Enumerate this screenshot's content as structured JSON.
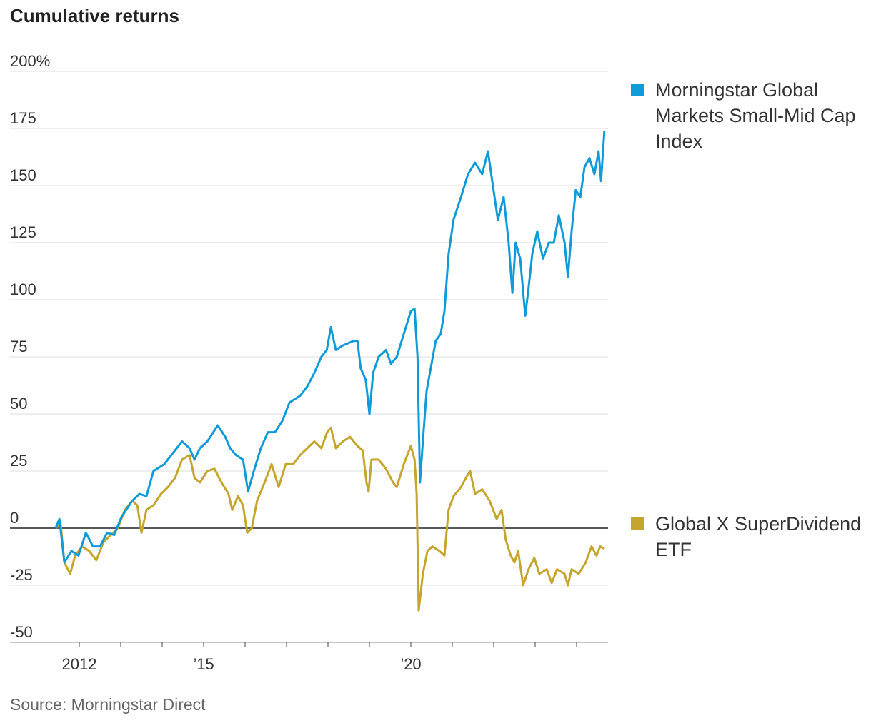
{
  "chart_data": {
    "type": "line",
    "title": "Cumulative returns",
    "source": "Source: Morningstar Direct",
    "xlabel": "",
    "ylabel": "",
    "xlim": [
      2011.0,
      2024.75
    ],
    "ylim": [
      -50,
      200
    ],
    "grid": true,
    "legend_placement": "right",
    "y_ticks": [
      {
        "value": 200,
        "label": "200%"
      },
      {
        "value": 175,
        "label": "175"
      },
      {
        "value": 150,
        "label": "150"
      },
      {
        "value": 125,
        "label": "125"
      },
      {
        "value": 100,
        "label": "100"
      },
      {
        "value": 75,
        "label": "75"
      },
      {
        "value": 50,
        "label": "50"
      },
      {
        "value": 25,
        "label": "25"
      },
      {
        "value": 0,
        "label": "0"
      },
      {
        "value": -25,
        "label": "-25"
      },
      {
        "value": -50,
        "label": "-50"
      }
    ],
    "x_ticks": [
      2012,
      2013,
      2014,
      2015,
      2016,
      2017,
      2018,
      2019,
      2020,
      2021,
      2022,
      2023,
      2024
    ],
    "x_tick_labels": [
      {
        "value": 2012,
        "label": "2012"
      },
      {
        "value": 2015,
        "label": "’15"
      },
      {
        "value": 2020,
        "label": "’20"
      }
    ],
    "series": [
      {
        "name": "Morningstar Global Markets Small-Mid Cap Index",
        "legend_lines": [
          "Morningstar Global",
          "Markets Small-Mid Cap",
          "Index"
        ],
        "color": "#0e9bd8",
        "x": [
          2011.43,
          2011.52,
          2011.64,
          2011.81,
          2011.98,
          2012.16,
          2012.33,
          2012.5,
          2012.67,
          2012.84,
          2013.02,
          2013.28,
          2013.45,
          2013.62,
          2013.79,
          2014.05,
          2014.22,
          2014.48,
          2014.66,
          2014.78,
          2014.91,
          2015.09,
          2015.34,
          2015.52,
          2015.64,
          2015.78,
          2015.95,
          2016.07,
          2016.21,
          2016.38,
          2016.55,
          2016.72,
          2016.9,
          2017.07,
          2017.33,
          2017.5,
          2017.67,
          2017.84,
          2017.97,
          2018.07,
          2018.19,
          2018.36,
          2018.62,
          2018.71,
          2018.79,
          2018.91,
          2019.0,
          2019.09,
          2019.22,
          2019.4,
          2019.52,
          2019.66,
          2019.83,
          2020.0,
          2020.09,
          2020.16,
          2020.22,
          2020.29,
          2020.38,
          2020.48,
          2020.6,
          2020.72,
          2020.81,
          2020.91,
          2021.03,
          2021.21,
          2021.38,
          2021.55,
          2021.72,
          2021.86,
          2021.98,
          2022.1,
          2022.24,
          2022.36,
          2022.45,
          2022.53,
          2022.64,
          2022.76,
          2022.84,
          2022.93,
          2023.05,
          2023.19,
          2023.33,
          2023.45,
          2023.57,
          2023.71,
          2023.79,
          2023.88,
          2023.98,
          2024.09,
          2024.19,
          2024.31,
          2024.43,
          2024.53,
          2024.59,
          2024.67
        ],
        "y": [
          0,
          4,
          -15,
          -10,
          -12,
          -2,
          -8,
          -8,
          -2,
          -3,
          5,
          12,
          15,
          14,
          25,
          28,
          32,
          38,
          35,
          30,
          35,
          38,
          45,
          40,
          35,
          32,
          30,
          16,
          25,
          35,
          42,
          42,
          47,
          55,
          58,
          62,
          68,
          75,
          78,
          88,
          78,
          80,
          82,
          82,
          70,
          65,
          50,
          68,
          75,
          78,
          72,
          75,
          85,
          95,
          96,
          75,
          20,
          38,
          60,
          70,
          82,
          85,
          95,
          120,
          135,
          145,
          155,
          160,
          155,
          165,
          150,
          135,
          145,
          125,
          103,
          125,
          118,
          93,
          105,
          120,
          130,
          118,
          125,
          125,
          137,
          125,
          110,
          130,
          148,
          145,
          158,
          162,
          155,
          165,
          152,
          174
        ]
      },
      {
        "name": "Global X SuperDividend ETF",
        "legend_lines": [
          "Global X SuperDividend",
          "ETF"
        ],
        "color": "#c4a62f",
        "x": [
          2011.43,
          2011.55,
          2011.64,
          2011.78,
          2011.9,
          2012.07,
          2012.24,
          2012.41,
          2012.59,
          2012.76,
          2012.93,
          2013.1,
          2013.28,
          2013.4,
          2013.5,
          2013.62,
          2013.79,
          2013.97,
          2014.14,
          2014.31,
          2014.48,
          2014.66,
          2014.78,
          2014.91,
          2015.09,
          2015.26,
          2015.43,
          2015.6,
          2015.69,
          2015.83,
          2015.95,
          2016.05,
          2016.16,
          2016.29,
          2016.47,
          2016.64,
          2016.81,
          2016.98,
          2017.16,
          2017.33,
          2017.5,
          2017.67,
          2017.84,
          2017.98,
          2018.07,
          2018.19,
          2018.36,
          2018.53,
          2018.71,
          2018.84,
          2018.93,
          2018.98,
          2019.05,
          2019.22,
          2019.4,
          2019.57,
          2019.66,
          2019.83,
          2020.0,
          2020.09,
          2020.14,
          2020.19,
          2020.29,
          2020.4,
          2020.52,
          2020.69,
          2020.81,
          2020.91,
          2021.03,
          2021.21,
          2021.33,
          2021.43,
          2021.55,
          2021.72,
          2021.9,
          2022.07,
          2022.19,
          2022.29,
          2022.41,
          2022.5,
          2022.59,
          2022.71,
          2022.84,
          2022.98,
          2023.1,
          2023.28,
          2023.4,
          2023.53,
          2023.71,
          2023.79,
          2023.88,
          2024.05,
          2024.22,
          2024.36,
          2024.48,
          2024.57,
          2024.67
        ],
        "y": [
          0,
          2,
          -15,
          -20,
          -12,
          -8,
          -10,
          -14,
          -6,
          -3,
          0,
          8,
          12,
          10,
          -2,
          8,
          10,
          15,
          18,
          22,
          30,
          32,
          22,
          20,
          25,
          26,
          20,
          15,
          8,
          14,
          10,
          -2,
          0,
          12,
          20,
          28,
          18,
          28,
          28,
          32,
          35,
          38,
          35,
          42,
          44,
          35,
          38,
          40,
          36,
          34,
          20,
          16,
          30,
          30,
          26,
          20,
          18,
          28,
          36,
          30,
          15,
          -36,
          -20,
          -10,
          -8,
          -10,
          -12,
          8,
          14,
          18,
          22,
          25,
          15,
          17,
          12,
          4,
          8,
          -5,
          -12,
          -15,
          -10,
          -25,
          -18,
          -13,
          -20,
          -18,
          -24,
          -18,
          -20,
          -25,
          -18,
          -20,
          -15,
          -8,
          -12,
          -8,
          -9
        ]
      }
    ]
  }
}
